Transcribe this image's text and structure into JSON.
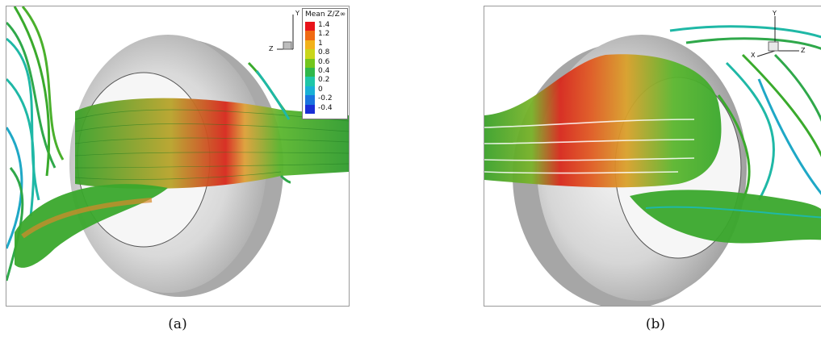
{
  "panels": [
    {
      "caption": "(a)",
      "axis_labels": {
        "y": "Y",
        "z": "Z"
      },
      "legend": {
        "title": "Mean Z/Z∞",
        "levels": [
          "1.4",
          "1.2",
          "1",
          "0.8",
          "0.6",
          "0.4",
          "0.2",
          "0",
          "-0.2",
          "-0.4"
        ],
        "colors": [
          "#e8131a",
          "#f06a12",
          "#f2b21a",
          "#c9d61a",
          "#73c61c",
          "#2fb84a",
          "#1fc6a8",
          "#19b0d6",
          "#1a74df",
          "#1a2fd6"
        ]
      }
    },
    {
      "caption": "(b)",
      "axis_labels": {
        "y": "Y",
        "x": "X",
        "z": "Z"
      }
    }
  ],
  "colors": {
    "tire": "#d9d9d9",
    "tire_shadow": "#a9a9a9",
    "streamline_green": "#3aaa2c",
    "streamline_cyan": "#1fb8a6",
    "streamline_red": "#d8281c",
    "streamline_orange": "#d9892a"
  }
}
